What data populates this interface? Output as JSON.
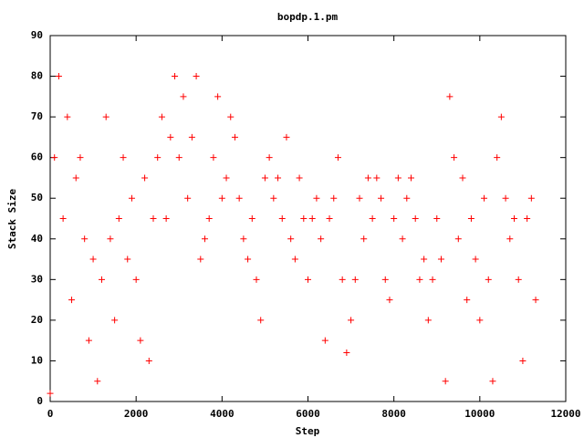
{
  "chart_data": {
    "type": "scatter",
    "title": "bopdp.1.pm",
    "x_label": "Step",
    "y_label": "Stack Size",
    "marker": "+",
    "color": "#ff0000",
    "x": [
      0,
      100,
      200,
      300,
      400,
      500,
      600,
      700,
      800,
      900,
      1000,
      1100,
      1200,
      1300,
      1400,
      1500,
      1600,
      1700,
      1800,
      1900,
      2000,
      2100,
      2200,
      2300,
      2400,
      2500,
      2600,
      2700,
      2800,
      2900,
      3000,
      3100,
      3200,
      3300,
      3400,
      3500,
      3600,
      3700,
      3800,
      3900,
      4000,
      4100,
      4200,
      4300,
      4400,
      4500,
      4600,
      4700,
      4800,
      4900,
      5000,
      5100,
      5200,
      5300,
      5400,
      5500,
      5600,
      5700,
      5800,
      5900,
      6000,
      6100,
      6200,
      6300,
      6400,
      6500,
      6600,
      6700,
      6800,
      6900,
      7000,
      7100,
      7200,
      7300,
      7400,
      7500,
      7600,
      7700,
      7800,
      7900,
      8000,
      8100,
      8200,
      8300,
      8400,
      8500,
      8600,
      8700,
      8800,
      8900,
      9000,
      9100,
      9200,
      9300,
      9400,
      9500,
      9600,
      9700,
      9800,
      9900,
      10000,
      10100,
      10200,
      10300,
      10400,
      10500,
      10600,
      10700,
      10800,
      10900,
      11000,
      11100,
      11200,
      11300
    ],
    "values": [
      2,
      60,
      80,
      45,
      70,
      25,
      55,
      60,
      40,
      15,
      35,
      5,
      30,
      70,
      40,
      20,
      45,
      60,
      35,
      50,
      30,
      15,
      55,
      10,
      45,
      60,
      70,
      45,
      65,
      80,
      60,
      75,
      50,
      65,
      80,
      35,
      40,
      45,
      60,
      75,
      50,
      55,
      70,
      65,
      50,
      40,
      35,
      45,
      30,
      20,
      55,
      60,
      50,
      55,
      45,
      65,
      40,
      35,
      55,
      45,
      30,
      45,
      50,
      40,
      15,
      45,
      50,
      60,
      30,
      12,
      20,
      30,
      50,
      40,
      55,
      45,
      55,
      50,
      30,
      25,
      45,
      55,
      40,
      50,
      55,
      45,
      30,
      35,
      20,
      30,
      45,
      35,
      5,
      75,
      60,
      40,
      55,
      25,
      45,
      35,
      20,
      50,
      30,
      5,
      60,
      70,
      50,
      40,
      45,
      30,
      10,
      45,
      50,
      25
    ],
    "xlim": [
      0,
      12000
    ],
    "xticks": [
      0,
      2000,
      4000,
      6000,
      8000,
      10000,
      12000
    ],
    "ylim": [
      0,
      90
    ],
    "yticks": [
      0,
      10,
      20,
      30,
      40,
      50,
      60,
      70,
      80,
      90
    ]
  }
}
